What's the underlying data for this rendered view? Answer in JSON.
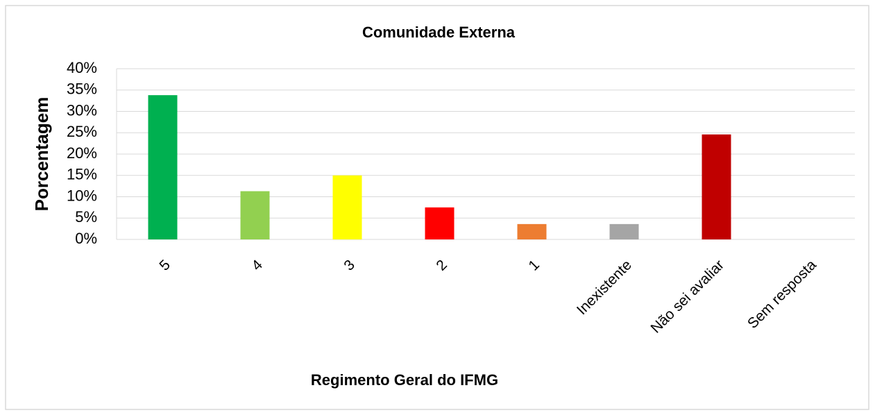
{
  "chart_data": {
    "type": "bar",
    "title": "Comunidade Externa",
    "x_label": "Regimento Geral do IFMG",
    "y_label": "Porcentagem",
    "categories": [
      "5",
      "4",
      "3",
      "2",
      "1",
      "Inexistente",
      "Não sei avaliar",
      "Sem resposta"
    ],
    "values": [
      33.8,
      11.3,
      15.0,
      7.5,
      3.6,
      3.6,
      24.6,
      0
    ],
    "colors": [
      "#00b050",
      "#92d050",
      "#ffff00",
      "#ff0000",
      "#ed7d31",
      "#a5a5a5",
      "#c00000",
      "#4472c4"
    ],
    "ylim": [
      0,
      40
    ],
    "yticks": [
      {
        "value": 0,
        "label": "0%"
      },
      {
        "value": 5,
        "label": "5%"
      },
      {
        "value": 10,
        "label": "10%"
      },
      {
        "value": 15,
        "label": "15%"
      },
      {
        "value": 20,
        "label": "20%"
      },
      {
        "value": 25,
        "label": "25%"
      },
      {
        "value": 30,
        "label": "30%"
      },
      {
        "value": 35,
        "label": "35%"
      },
      {
        "value": 40,
        "label": "40%"
      }
    ],
    "grid": true
  }
}
